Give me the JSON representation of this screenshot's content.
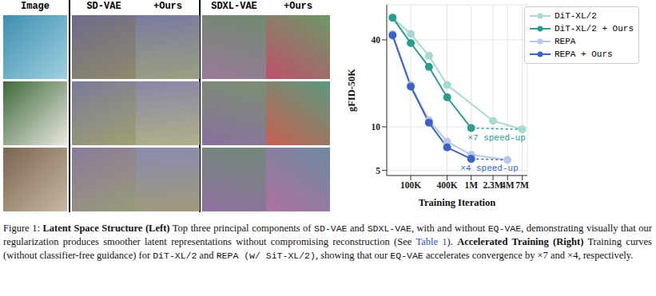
{
  "panel_headers": [
    "Image",
    "SD-VAE",
    "+Ours",
    "SDXL-VAE",
    "+Ours"
  ],
  "chart_data": {
    "type": "line",
    "x_label": "Training Iteration",
    "y_label": "gFID-50K",
    "log": true,
    "grid": true,
    "legend": "upper right",
    "marker": "o",
    "xlim": [
      40000,
      8500000
    ],
    "xticks": [
      {
        "value": 100000,
        "label": "100K"
      },
      {
        "value": 400000,
        "label": "400K"
      },
      {
        "value": 1000000,
        "label": "1M"
      },
      {
        "value": 2300000,
        "label": "2.3M"
      },
      {
        "value": 4000000,
        "label": "4M"
      },
      {
        "value": 7000000,
        "label": "7M"
      }
    ],
    "ylim": [
      4.6,
      70
    ],
    "yticks": [
      5,
      10,
      40
    ],
    "series": [
      {
        "name": "DiT-XL/2",
        "color": "#a6d9cf",
        "x": [
          50000,
          100000,
          200000,
          400000,
          2300000,
          7000000
        ],
        "values": [
          57,
          44,
          31,
          19.5,
          11,
          9.6
        ]
      },
      {
        "name": "DiT-XL/2 + Ours",
        "color": "#2a9d8f",
        "x": [
          50000,
          100000,
          200000,
          400000,
          1000000
        ],
        "values": [
          57,
          38,
          26,
          16,
          9.8
        ]
      },
      {
        "name": "REPA",
        "color": "#b9c7ec",
        "x": [
          50000,
          100000,
          200000,
          400000,
          1000000,
          4000000
        ],
        "values": [
          44,
          19.4,
          11.1,
          7.9,
          6.4,
          5.9
        ]
      },
      {
        "name": "REPA + Ours",
        "color": "#3a63c9",
        "x": [
          50000,
          100000,
          200000,
          400000,
          1000000
        ],
        "values": [
          43,
          19,
          10.7,
          7.2,
          6.0
        ]
      }
    ],
    "annotations": [
      {
        "text": "×7 speed-up",
        "from": "DiT-XL/2",
        "to": "DiT-XL/2 + Ours"
      },
      {
        "text": "×4 speed-up",
        "from": "REPA",
        "to": "REPA + Ours"
      }
    ]
  },
  "caption": [
    {
      "text": "Figure 1: ",
      "style": "normal"
    },
    {
      "text": "Latent Space Structure (Left)",
      "style": "bold"
    },
    {
      "text": " Top three principal components of ",
      "style": "normal"
    },
    {
      "text": "SD-VAE",
      "style": "mono"
    },
    {
      "text": " and ",
      "style": "normal"
    },
    {
      "text": "SDXL-VAE",
      "style": "mono"
    },
    {
      "text": ", with and without ",
      "style": "normal"
    },
    {
      "text": "EQ-VAE",
      "style": "mono"
    },
    {
      "text": ", demonstrating visually that our regularization produces smoother latent representations without compromising reconstruction (See ",
      "style": "normal"
    },
    {
      "text": "Table 1",
      "style": "link"
    },
    {
      "text": "). ",
      "style": "normal"
    },
    {
      "text": "Accelerated Training (Right)",
      "style": "bold"
    },
    {
      "text": " Training curves (without classifier-free guidance) for ",
      "style": "normal"
    },
    {
      "text": "DiT-XL/2",
      "style": "mono"
    },
    {
      "text": " and ",
      "style": "normal"
    },
    {
      "text": "REPA (w/ SiT-XL/2)",
      "style": "mono"
    },
    {
      "text": ", showing that our ",
      "style": "normal"
    },
    {
      "text": "EQ-VAE",
      "style": "mono"
    },
    {
      "text": " accelerates convergence by ×7 and ×4, respectively.",
      "style": "normal"
    }
  ]
}
